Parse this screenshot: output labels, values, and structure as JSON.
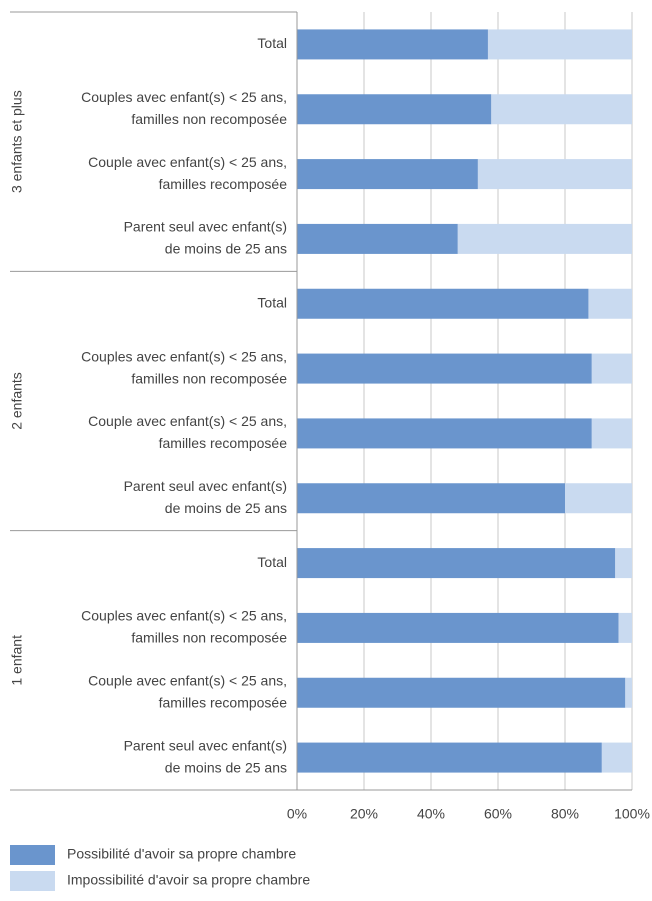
{
  "chart_data": {
    "type": "stacked-bar-horizontal",
    "groups": [
      {
        "name": "3 enfants et plus",
        "categories": [
          [
            "Total"
          ],
          [
            "Couples avec enfant(s) < 25 ans,",
            "familles non recomposée"
          ],
          [
            "Couple avec enfant(s) < 25 ans,",
            "familles recomposée"
          ],
          [
            "Parent seul avec enfant(s)",
            "de moins de 25 ans"
          ]
        ]
      },
      {
        "name": "2 enfants",
        "categories": [
          [
            "Total"
          ],
          [
            "Couples avec enfant(s) < 25 ans,",
            "familles non recomposée"
          ],
          [
            "Couple avec enfant(s) < 25 ans,",
            "familles recomposée"
          ],
          [
            "Parent seul avec enfant(s)",
            "de moins de 25 ans"
          ]
        ]
      },
      {
        "name": "1 enfant",
        "categories": [
          [
            "Total"
          ],
          [
            "Couples avec enfant(s) < 25 ans,",
            "familles non recomposée"
          ],
          [
            "Couple avec enfant(s) < 25 ans,",
            "familles recomposée"
          ],
          [
            "Parent seul avec enfant(s)",
            "de moins de 25 ans"
          ]
        ]
      }
    ],
    "series": [
      {
        "name": "Possibilité d'avoir sa propre chambre",
        "color": "#6a95cd",
        "values": [
          [
            57,
            58,
            54,
            48
          ],
          [
            87,
            88,
            88,
            80
          ],
          [
            95,
            96,
            98,
            91
          ]
        ]
      },
      {
        "name": "Impossibilité d'avoir sa propre chambre",
        "color": "#c9daf0",
        "values": [
          [
            43,
            42,
            46,
            52
          ],
          [
            13,
            12,
            12,
            20
          ],
          [
            5,
            4,
            2,
            9
          ]
        ]
      }
    ],
    "xlim": [
      0,
      100
    ],
    "xticks": [
      {
        "value": 0,
        "label": "0%"
      },
      {
        "value": 20,
        "label": "20%"
      },
      {
        "value": 40,
        "label": "40%"
      },
      {
        "value": 60,
        "label": "60%"
      },
      {
        "value": 80,
        "label": "80%"
      },
      {
        "value": 100,
        "label": "100%"
      }
    ],
    "grid": true,
    "legend": "bottom"
  }
}
